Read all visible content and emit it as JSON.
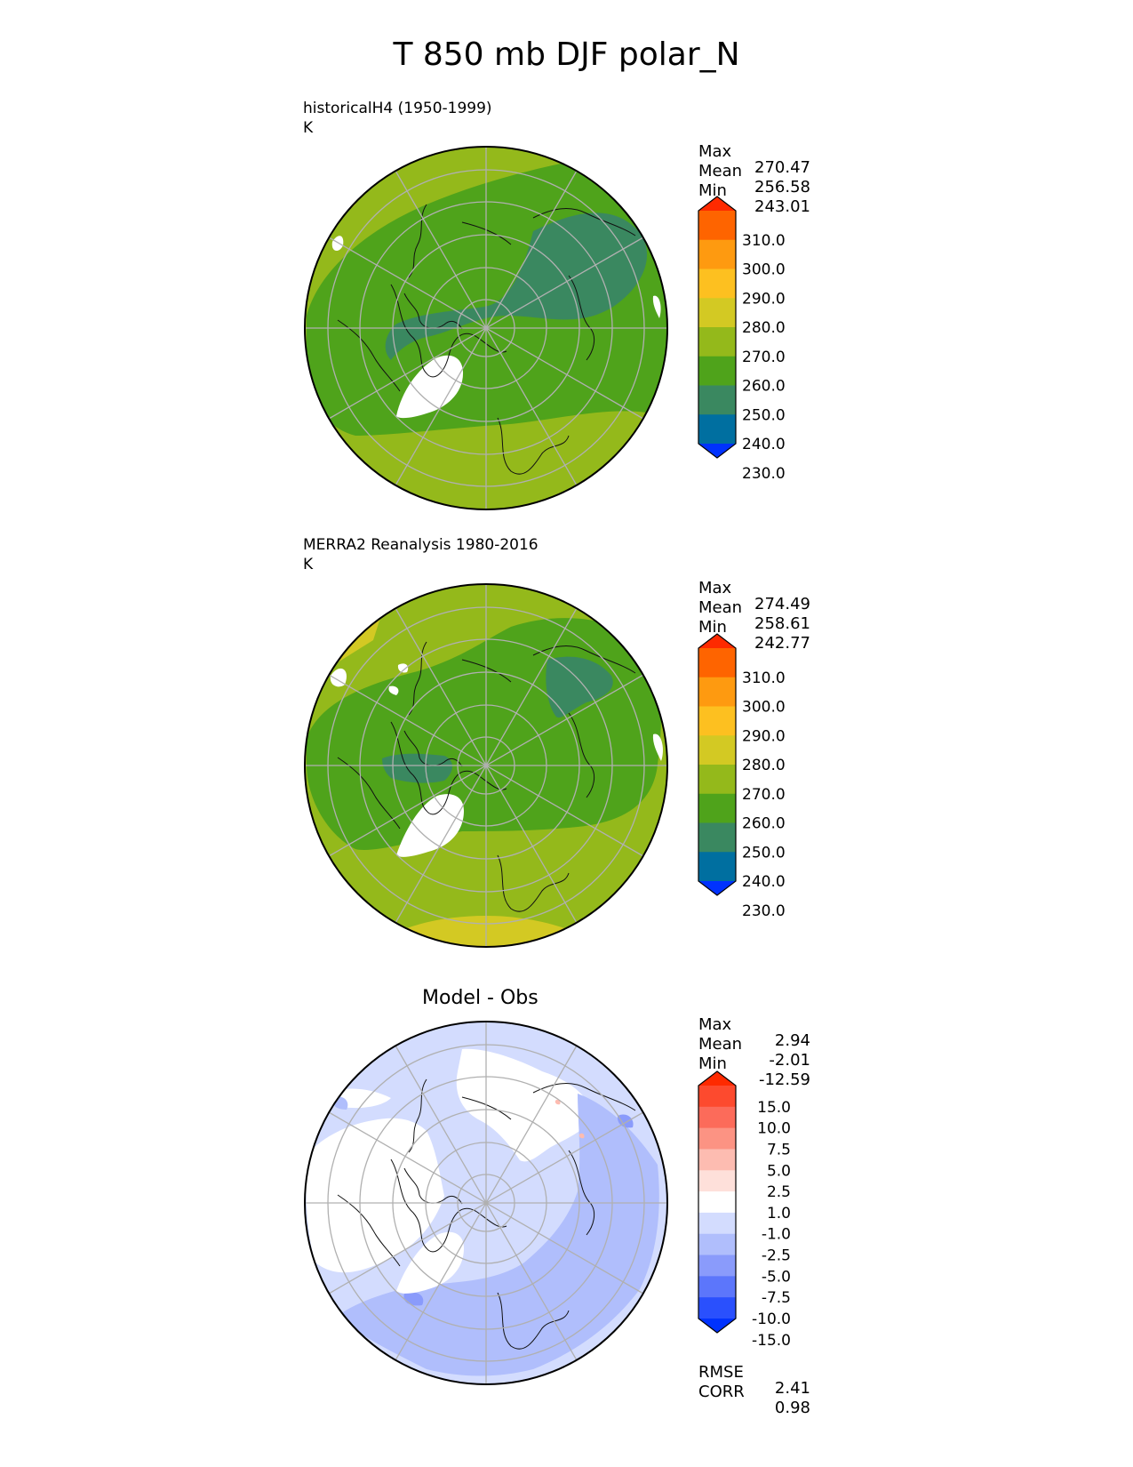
{
  "title": "T 850 mb DJF polar_N",
  "panels": [
    {
      "title_line1": "historicalH4 (1950-1999)",
      "title_line2": "K",
      "stats": [
        {
          "label": "Max",
          "value": "270.47"
        },
        {
          "label": "Mean",
          "value": "256.58"
        },
        {
          "label": "Min",
          "value": "243.01"
        }
      ],
      "colorbar": {
        "ticks": [
          "310.0",
          "300.0",
          "290.0",
          "280.0",
          "270.0",
          "260.0",
          "250.0",
          "240.0",
          "230.0"
        ],
        "colors": [
          "#fe2a00",
          "#fe6400",
          "#fe9a10",
          "#fdc020",
          "#d3c923",
          "#94b91b",
          "#4fa31b",
          "#3a8860",
          "#006fa0",
          "#0032fe"
        ]
      }
    },
    {
      "title_line1": "MERRA2 Reanalysis 1980-2016",
      "title_line2": "K",
      "stats": [
        {
          "label": "Max",
          "value": "274.49"
        },
        {
          "label": "Mean",
          "value": "258.61"
        },
        {
          "label": "Min",
          "value": "242.77"
        }
      ],
      "colorbar": {
        "ticks": [
          "310.0",
          "300.0",
          "290.0",
          "280.0",
          "270.0",
          "260.0",
          "250.0",
          "240.0",
          "230.0"
        ],
        "colors": [
          "#fe2a00",
          "#fe6400",
          "#fe9a10",
          "#fdc020",
          "#d3c923",
          "#94b91b",
          "#4fa31b",
          "#3a8860",
          "#006fa0",
          "#0032fe"
        ]
      }
    },
    {
      "title": "Model - Obs",
      "stats": [
        {
          "label": "Max",
          "value": "2.94"
        },
        {
          "label": "Mean",
          "value": "-2.01"
        },
        {
          "label": "Min",
          "value": "-12.59"
        }
      ],
      "colorbar": {
        "ticks": [
          "15.0",
          "10.0",
          "7.5",
          "5.0",
          "2.5",
          "1.0",
          "-1.0",
          "-2.5",
          "-5.0",
          "-7.5",
          "-10.0",
          "-15.0"
        ],
        "colors": [
          "#fe2a00",
          "#fd4a2e",
          "#fc6b5a",
          "#fc9383",
          "#fdbcb1",
          "#fee0da",
          "#ffffff",
          "#d3dcfe",
          "#b0befc",
          "#8a9bfb",
          "#5c76fb",
          "#2a50fd",
          "#0032fe"
        ]
      },
      "extra_stats": [
        {
          "label": "RMSE",
          "value": "2.41"
        },
        {
          "label": "CORR",
          "value": "0.98"
        }
      ]
    }
  ]
}
